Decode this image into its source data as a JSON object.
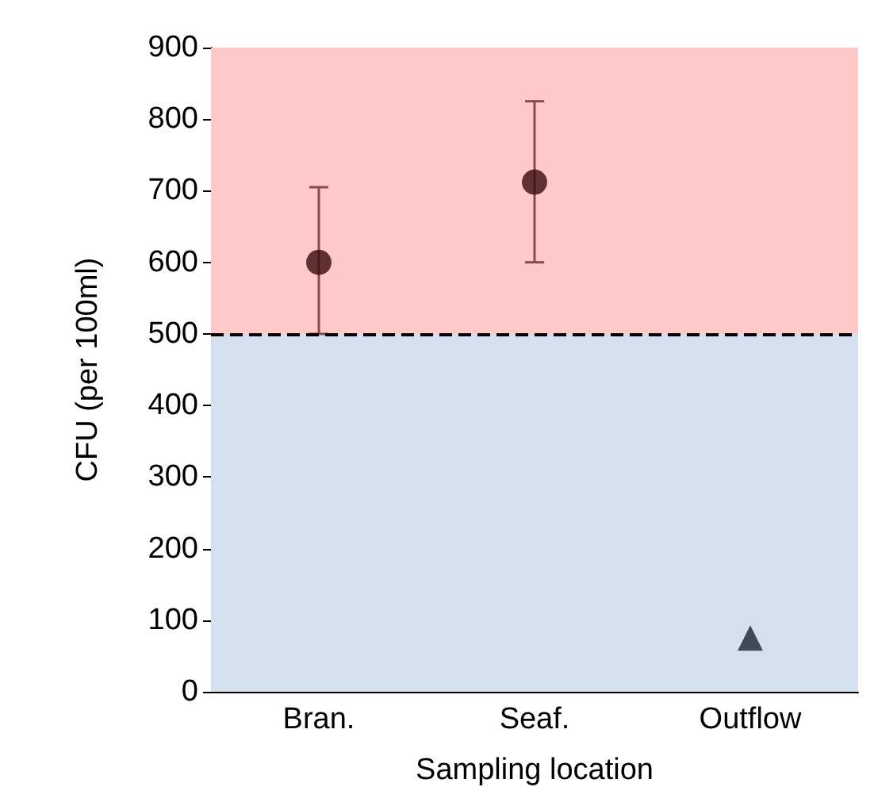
{
  "chart_data": {
    "type": "scatter",
    "xlabel": "Sampling location",
    "ylabel": "CFU (per 100ml)",
    "categories": [
      "Bran.",
      "Seaf.",
      "Outflow"
    ],
    "series": [
      {
        "color": "#3a0a0a",
        "marker": "circle",
        "values": [
          600,
          712,
          null
        ],
        "errors": [
          [
            500,
            705
          ],
          [
            600,
            825
          ],
          null
        ]
      },
      {
        "color": "#1a2333",
        "marker": "triangle",
        "values": [
          null,
          null,
          75
        ]
      }
    ],
    "ylim": [
      0,
      900
    ],
    "yticks": [
      0,
      100,
      200,
      300,
      400,
      500,
      600,
      700,
      800,
      900
    ],
    "grid": false,
    "bands": [
      {
        "axis": "y",
        "from": 0,
        "to": 500,
        "color": "#d5e0ee"
      },
      {
        "axis": "y",
        "from": 500,
        "to": 900,
        "color": "#ffc9c9"
      }
    ],
    "ref_lines": [
      {
        "axis": "y",
        "value": 500,
        "color": "#000000",
        "line_style": "dashed"
      }
    ]
  }
}
